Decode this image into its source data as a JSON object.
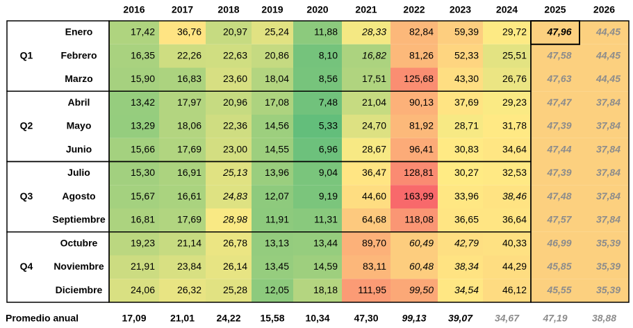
{
  "chart_data": {
    "type": "heatmap",
    "columns": [
      "2016",
      "2017",
      "2018",
      "2019",
      "2020",
      "2021",
      "2022",
      "2023",
      "2024",
      "2025",
      "2026"
    ],
    "quarters": [
      {
        "label": "Q1",
        "months": [
          "Enero",
          "Febrero",
          "Marzo"
        ]
      },
      {
        "label": "Q2",
        "months": [
          "Abril",
          "Mayo",
          "Junio"
        ]
      },
      {
        "label": "Q3",
        "months": [
          "Julio",
          "Agosto",
          "Septiembre"
        ]
      },
      {
        "label": "Q4",
        "months": [
          "Octubre",
          "Noviembre",
          "Diciembre"
        ]
      }
    ],
    "rows": [
      {
        "month": "Enero",
        "values": [
          "17,42",
          "36,76",
          "20,97",
          "25,24",
          "11,88",
          "28,33",
          "82,84",
          "59,39",
          "29,72",
          "47,96",
          "44,45"
        ]
      },
      {
        "month": "Febrero",
        "values": [
          "16,35",
          "22,26",
          "22,63",
          "20,86",
          "8,10",
          "16,82",
          "81,26",
          "52,33",
          "25,51",
          "47,58",
          "44,45"
        ]
      },
      {
        "month": "Marzo",
        "values": [
          "15,90",
          "16,83",
          "23,60",
          "18,04",
          "8,56",
          "17,51",
          "125,68",
          "43,30",
          "26,76",
          "47,63",
          "44,45"
        ]
      },
      {
        "month": "Abril",
        "values": [
          "13,42",
          "17,97",
          "20,96",
          "17,08",
          "7,48",
          "21,04",
          "90,13",
          "37,69",
          "29,23",
          "47,47",
          "37,84"
        ]
      },
      {
        "month": "Mayo",
        "values": [
          "13,29",
          "18,06",
          "22,36",
          "14,56",
          "5,33",
          "24,70",
          "81,92",
          "28,71",
          "31,78",
          "47,39",
          "37,84"
        ]
      },
      {
        "month": "Junio",
        "values": [
          "15,66",
          "17,69",
          "23,00",
          "14,55",
          "6,96",
          "28,67",
          "96,41",
          "30,83",
          "34,64",
          "47,44",
          "37,84"
        ]
      },
      {
        "month": "Julio",
        "values": [
          "15,30",
          "16,91",
          "25,13",
          "13,96",
          "9,04",
          "36,47",
          "128,81",
          "30,27",
          "32,53",
          "47,39",
          "37,84"
        ]
      },
      {
        "month": "Agosto",
        "values": [
          "15,67",
          "16,61",
          "24,83",
          "12,07",
          "9,19",
          "44,60",
          "163,99",
          "33,96",
          "38,46",
          "47,48",
          "37,84"
        ]
      },
      {
        "month": "Septiembre",
        "values": [
          "16,81",
          "17,69",
          "28,98",
          "11,91",
          "11,31",
          "64,68",
          "118,08",
          "36,65",
          "36,64",
          "47,57",
          "37,84"
        ]
      },
      {
        "month": "Octubre",
        "values": [
          "19,23",
          "21,14",
          "26,78",
          "13,13",
          "13,44",
          "89,70",
          "60,49",
          "42,79",
          "40,33",
          "46,99",
          "35,39"
        ]
      },
      {
        "month": "Noviembre",
        "values": [
          "21,91",
          "23,84",
          "26,14",
          "13,45",
          "14,59",
          "83,11",
          "60,48",
          "38,34",
          "44,29",
          "45,85",
          "35,39"
        ]
      },
      {
        "month": "Diciembre",
        "values": [
          "24,06",
          "26,32",
          "25,28",
          "12,05",
          "18,18",
          "111,95",
          "99,50",
          "34,54",
          "46,12",
          "45,55",
          "35,39"
        ]
      }
    ],
    "italic_cells": [
      [
        0,
        5
      ],
      [
        0,
        9
      ],
      [
        0,
        10
      ],
      [
        1,
        5
      ],
      [
        1,
        9
      ],
      [
        1,
        10
      ],
      [
        2,
        9
      ],
      [
        2,
        10
      ],
      [
        3,
        9
      ],
      [
        3,
        10
      ],
      [
        4,
        9
      ],
      [
        4,
        10
      ],
      [
        5,
        9
      ],
      [
        5,
        10
      ],
      [
        6,
        2
      ],
      [
        6,
        9
      ],
      [
        6,
        10
      ],
      [
        7,
        2
      ],
      [
        7,
        8
      ],
      [
        7,
        9
      ],
      [
        7,
        10
      ],
      [
        8,
        2
      ],
      [
        8,
        9
      ],
      [
        8,
        10
      ],
      [
        9,
        6
      ],
      [
        9,
        7
      ],
      [
        9,
        9
      ],
      [
        9,
        10
      ],
      [
        10,
        6
      ],
      [
        10,
        7
      ],
      [
        10,
        9
      ],
      [
        10,
        10
      ],
      [
        11,
        6
      ],
      [
        11,
        7
      ],
      [
        11,
        9
      ],
      [
        11,
        10
      ]
    ],
    "forecast_columns": [
      9,
      10
    ],
    "highlighted_cell": [
      0,
      9
    ],
    "annual_label": "Promedio anual",
    "annual_values": [
      "17,09",
      "21,01",
      "24,22",
      "15,58",
      "10,34",
      "47,30",
      "99,13",
      "39,07",
      "34,67",
      "47,19",
      "38,88"
    ],
    "annual_styles": [
      "bold",
      "bold",
      "bold",
      "bold",
      "bold",
      "bold",
      "bold-italic",
      "bold-italic",
      "italic-gray",
      "italic-gray",
      "italic-gray"
    ],
    "color_scale": {
      "low": "#63be7b",
      "mid": "#ffeb84",
      "high": "#f8696b",
      "low_value": 5.33,
      "mid_value": 30,
      "high_value": 163.99
    },
    "forecast_fill": "#fcd07f",
    "forecast_text": "#8c8c8c"
  }
}
